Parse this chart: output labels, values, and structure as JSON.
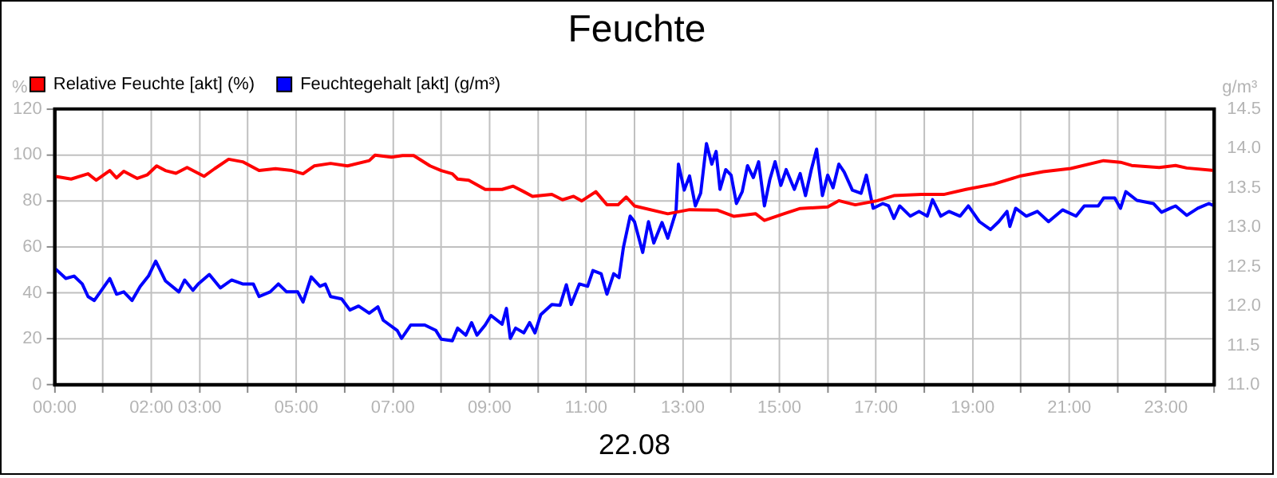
{
  "chart_data": {
    "type": "line",
    "title": "Feuchte",
    "xlabel": "22.08",
    "ylabel": "%",
    "y2label": "g/m³",
    "legend": "top left",
    "grid": true,
    "marker": "none",
    "line_style": "solid",
    "xlim": [
      0,
      24
    ],
    "xticks": [
      {
        "value": 0,
        "label": "00:00"
      },
      {
        "value": 1,
        "label": null
      },
      {
        "value": 2,
        "label": "02:00"
      },
      {
        "value": 3,
        "label": "03:00"
      },
      {
        "value": 4,
        "label": null
      },
      {
        "value": 5,
        "label": "05:00"
      },
      {
        "value": 6,
        "label": null
      },
      {
        "value": 7,
        "label": "07:00"
      },
      {
        "value": 8,
        "label": null
      },
      {
        "value": 9,
        "label": "09:00"
      },
      {
        "value": 10,
        "label": null
      },
      {
        "value": 11,
        "label": "11:00"
      },
      {
        "value": 12,
        "label": null
      },
      {
        "value": 13,
        "label": "13:00"
      },
      {
        "value": 14,
        "label": null
      },
      {
        "value": 15,
        "label": "15:00"
      },
      {
        "value": 16,
        "label": null
      },
      {
        "value": 17,
        "label": "17:00"
      },
      {
        "value": 18,
        "label": null
      },
      {
        "value": 19,
        "label": "19:00"
      },
      {
        "value": 20,
        "label": null
      },
      {
        "value": 21,
        "label": "21:00"
      },
      {
        "value": 22,
        "label": null
      },
      {
        "value": 23,
        "label": "23:00"
      },
      {
        "value": 24,
        "label": null
      }
    ],
    "ylim": [
      0,
      120
    ],
    "yticks": [
      0,
      20,
      40,
      60,
      80,
      100,
      120
    ],
    "y2lim": [
      11,
      14.5
    ],
    "y2ticks": [
      {
        "value": 11,
        "label": "11.0"
      },
      {
        "value": 11.5,
        "label": "11.5"
      },
      {
        "value": 12,
        "label": "12.0"
      },
      {
        "value": 12.5,
        "label": "12.5"
      },
      {
        "value": 13,
        "label": "13.0"
      },
      {
        "value": 13.5,
        "label": "13.5"
      },
      {
        "value": 14,
        "label": "14.0"
      },
      {
        "value": 14.5,
        "label": "14.5"
      }
    ],
    "series": [
      {
        "name": "Relative Feuchte [akt] (%)",
        "color": "#ff0000",
        "x": [
          0,
          0.34,
          0.69,
          0.86,
          1.14,
          1.28,
          1.43,
          1.71,
          1.92,
          2.11,
          2.29,
          2.51,
          2.74,
          3.09,
          3.31,
          3.6,
          3.89,
          4.23,
          4.57,
          4.91,
          5.14,
          5.37,
          5.71,
          6.06,
          6.51,
          6.63,
          6.97,
          7.2,
          7.43,
          7.77,
          8,
          8.23,
          8.34,
          8.57,
          8.91,
          9.26,
          9.49,
          9.71,
          9.89,
          10.29,
          10.51,
          10.74,
          10.91,
          11.2,
          11.43,
          11.66,
          11.83,
          12,
          12.69,
          13.14,
          13.71,
          14.06,
          14.51,
          14.69,
          15.09,
          15.43,
          16,
          16.23,
          16.57,
          17.03,
          17.37,
          17.94,
          18.4,
          18.86,
          19.43,
          20,
          20.46,
          21.03,
          21.71,
          22.06,
          22.29,
          22.86,
          23.2,
          23.43,
          24
        ],
        "values": [
          90.7,
          89.5,
          91.8,
          89,
          93.2,
          90,
          92.9,
          89.8,
          91.4,
          95.2,
          93.2,
          92,
          94.5,
          90.7,
          94,
          98.1,
          97,
          93.2,
          94,
          93.2,
          91.8,
          95.2,
          96.3,
          95.2,
          97.5,
          99.9,
          99,
          99.7,
          99.7,
          95.2,
          93.2,
          91.8,
          89.5,
          89,
          85,
          85,
          86.4,
          84,
          82,
          82.8,
          80.5,
          82,
          80,
          84,
          78.3,
          78.3,
          81.7,
          77.8,
          74.4,
          76.2,
          76,
          73.3,
          74.4,
          71.5,
          74.4,
          76.7,
          77.4,
          80.1,
          78.3,
          80.1,
          82.3,
          82.8,
          82.8,
          85,
          87.3,
          90.9,
          92.7,
          94.1,
          97.5,
          96.8,
          95.4,
          94.5,
          95.4,
          94.3,
          93.2
        ]
      },
      {
        "name": "Feuchtegehalt [akt] (g/m³)",
        "color": "#0000ff",
        "axis": "y2",
        "x": [
          0,
          0.23,
          0.4,
          0.57,
          0.69,
          0.82,
          1.14,
          1.28,
          1.43,
          1.6,
          1.77,
          1.94,
          2.09,
          2.29,
          2.57,
          2.69,
          2.86,
          2.97,
          3.2,
          3.43,
          3.66,
          3.89,
          4.11,
          4.23,
          4.46,
          4.63,
          4.8,
          5.03,
          5.14,
          5.31,
          5.49,
          5.6,
          5.71,
          5.94,
          6.11,
          6.29,
          6.51,
          6.69,
          6.8,
          7.09,
          7.18,
          7.37,
          7.66,
          7.89,
          8,
          8.23,
          8.34,
          8.51,
          8.63,
          8.74,
          8.91,
          9.03,
          9.26,
          9.35,
          9.43,
          9.54,
          9.71,
          9.83,
          9.94,
          10.06,
          10.29,
          10.46,
          10.59,
          10.69,
          10.86,
          11.03,
          11.14,
          11.31,
          11.43,
          11.57,
          11.68,
          11.77,
          11.91,
          12,
          12.17,
          12.29,
          12.4,
          12.57,
          12.69,
          12.86,
          12.91,
          13.03,
          13.14,
          13.26,
          13.37,
          13.49,
          13.6,
          13.69,
          13.77,
          13.89,
          14,
          14.11,
          14.23,
          14.34,
          14.46,
          14.57,
          14.69,
          14.8,
          14.91,
          15.03,
          15.14,
          15.31,
          15.43,
          15.54,
          15.66,
          15.77,
          15.89,
          16,
          16.11,
          16.23,
          16.34,
          16.51,
          16.69,
          16.8,
          16.94,
          17.14,
          17.26,
          17.37,
          17.49,
          17.71,
          17.89,
          18.06,
          18.17,
          18.34,
          18.51,
          18.74,
          18.91,
          19.14,
          19.37,
          19.54,
          19.71,
          19.77,
          19.89,
          20.11,
          20.34,
          20.57,
          20.86,
          21.14,
          21.31,
          21.6,
          21.71,
          21.94,
          22.06,
          22.17,
          22.4,
          22.74,
          22.91,
          23.09,
          23.2,
          23.43,
          23.66,
          23.89,
          24
        ],
        "values": [
          12.48,
          12.35,
          12.38,
          12.28,
          12.12,
          12.07,
          12.35,
          12.15,
          12.18,
          12.07,
          12.25,
          12.38,
          12.57,
          12.32,
          12.18,
          12.33,
          12.2,
          12.28,
          12.4,
          12.23,
          12.33,
          12.28,
          12.28,
          12.12,
          12.18,
          12.28,
          12.18,
          12.18,
          12.05,
          12.37,
          12.25,
          12.28,
          12.12,
          12.09,
          11.95,
          12,
          11.91,
          11.99,
          11.82,
          11.69,
          11.59,
          11.76,
          11.76,
          11.69,
          11.58,
          11.56,
          11.72,
          11.63,
          11.79,
          11.63,
          11.76,
          11.88,
          11.77,
          11.97,
          11.59,
          11.72,
          11.66,
          11.79,
          11.66,
          11.89,
          12.02,
          12.01,
          12.27,
          12.02,
          12.28,
          12.25,
          12.45,
          12.41,
          12.15,
          12.41,
          12.36,
          12.74,
          13.14,
          13.07,
          12.68,
          13.07,
          12.8,
          13.06,
          12.86,
          13.2,
          13.8,
          13.47,
          13.65,
          13.27,
          13.43,
          14.06,
          13.8,
          13.96,
          13.48,
          13.73,
          13.66,
          13.3,
          13.45,
          13.78,
          13.63,
          13.83,
          13.27,
          13.6,
          13.83,
          13.53,
          13.73,
          13.48,
          13.68,
          13.4,
          13.73,
          13.99,
          13.4,
          13.66,
          13.5,
          13.8,
          13.7,
          13.47,
          13.43,
          13.66,
          13.24,
          13.3,
          13.27,
          13.11,
          13.27,
          13.14,
          13.2,
          13.14,
          13.35,
          13.14,
          13.2,
          13.14,
          13.27,
          13.07,
          12.97,
          13.07,
          13.2,
          13.01,
          13.24,
          13.14,
          13.2,
          13.07,
          13.22,
          13.14,
          13.27,
          13.27,
          13.37,
          13.37,
          13.24,
          13.45,
          13.34,
          13.3,
          13.19,
          13.24,
          13.27,
          13.15,
          13.24,
          13.3,
          13.27
        ]
      }
    ]
  }
}
